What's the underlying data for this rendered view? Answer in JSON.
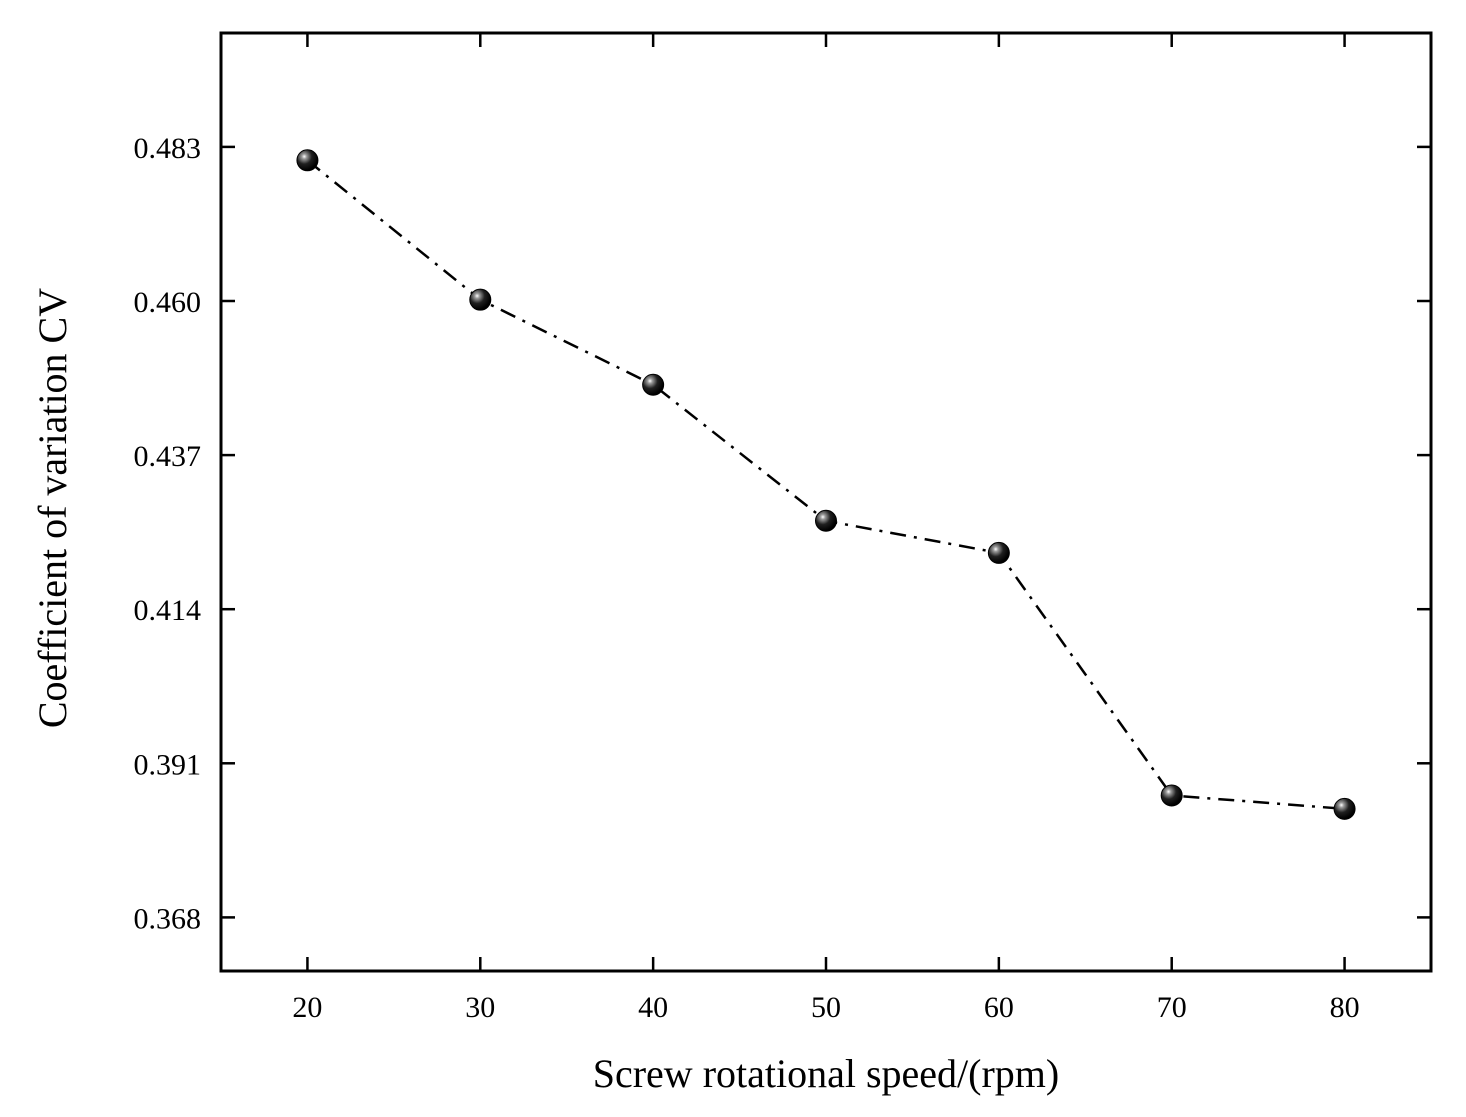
{
  "chart_data": {
    "type": "line",
    "title": "",
    "xlabel": "Screw rotational speed/(rpm)",
    "ylabel": "Coefficient of variation CV",
    "xlim": [
      15,
      85
    ],
    "ylim": [
      0.36,
      0.5
    ],
    "x_ticks": [
      20,
      30,
      40,
      50,
      60,
      70,
      80
    ],
    "x_tick_labels": [
      "20",
      "30",
      "40",
      "50",
      "60",
      "70",
      "80"
    ],
    "y_ticks": [
      0.368,
      0.391,
      0.414,
      0.437,
      0.46,
      0.483
    ],
    "y_tick_labels": [
      "0.368",
      "0.391",
      "0.414",
      "0.437",
      "0.460",
      "0.483"
    ],
    "grid": false,
    "legend": "none",
    "series": [
      {
        "name": "CV",
        "line_style": "dash-dot",
        "marker": "sphere",
        "x": [
          20,
          30,
          40,
          50,
          60,
          70,
          80
        ],
        "y": [
          0.481,
          0.4602,
          0.4475,
          0.4272,
          0.4224,
          0.3862,
          0.3842
        ]
      }
    ]
  }
}
